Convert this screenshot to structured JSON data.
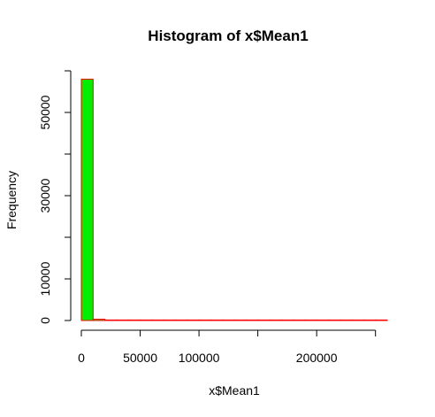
{
  "chart_data": {
    "type": "bar",
    "title": "Histogram of x$Mean1",
    "xlabel": "x$Mean1",
    "ylabel": "Frequency",
    "x_ticks": [
      0,
      50000,
      100000,
      150000,
      200000,
      250000
    ],
    "x_tick_labels": [
      "0",
      "50000",
      "100000",
      "",
      "200000",
      ""
    ],
    "xlim": [
      0,
      260000
    ],
    "y_ticks": [
      0,
      10000,
      20000,
      30000,
      40000,
      50000,
      60000
    ],
    "y_tick_labels": [
      "0",
      "10000",
      "",
      "30000",
      "",
      "50000",
      ""
    ],
    "ylim": [
      0,
      60000
    ],
    "bin_width": 10000,
    "bins": [
      {
        "x0": 0,
        "x1": 10000,
        "count": 58000
      },
      {
        "x0": 10000,
        "x1": 20000,
        "count": 300
      },
      {
        "x0": 20000,
        "x1": 30000,
        "count": 60
      },
      {
        "x0": 30000,
        "x1": 40000,
        "count": 30
      },
      {
        "x0": 40000,
        "x1": 50000,
        "count": 20
      },
      {
        "x0": 50000,
        "x1": 60000,
        "count": 15
      },
      {
        "x0": 60000,
        "x1": 70000,
        "count": 10
      },
      {
        "x0": 70000,
        "x1": 80000,
        "count": 8
      },
      {
        "x0": 80000,
        "x1": 90000,
        "count": 6
      },
      {
        "x0": 90000,
        "x1": 100000,
        "count": 5
      },
      {
        "x0": 100000,
        "x1": 110000,
        "count": 4
      },
      {
        "x0": 110000,
        "x1": 120000,
        "count": 3
      },
      {
        "x0": 120000,
        "x1": 130000,
        "count": 3
      },
      {
        "x0": 130000,
        "x1": 140000,
        "count": 2
      },
      {
        "x0": 140000,
        "x1": 150000,
        "count": 2
      },
      {
        "x0": 150000,
        "x1": 160000,
        "count": 2
      },
      {
        "x0": 160000,
        "x1": 170000,
        "count": 1
      },
      {
        "x0": 170000,
        "x1": 180000,
        "count": 1
      },
      {
        "x0": 180000,
        "x1": 190000,
        "count": 1
      },
      {
        "x0": 190000,
        "x1": 200000,
        "count": 1
      },
      {
        "x0": 200000,
        "x1": 210000,
        "count": 1
      },
      {
        "x0": 210000,
        "x1": 220000,
        "count": 1
      },
      {
        "x0": 220000,
        "x1": 230000,
        "count": 1
      },
      {
        "x0": 230000,
        "x1": 240000,
        "count": 1
      },
      {
        "x0": 240000,
        "x1": 250000,
        "count": 1
      },
      {
        "x0": 250000,
        "x1": 260000,
        "count": 1
      }
    ],
    "colors": {
      "bar_fill": "#00ee00",
      "bar_border": "#ff0000"
    }
  }
}
